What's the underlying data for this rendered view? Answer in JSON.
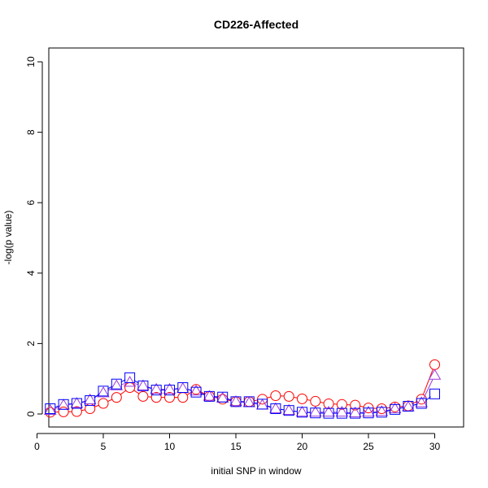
{
  "chart_data": {
    "type": "line",
    "title": "CD226-Affected",
    "xlabel": "initial SNP in window",
    "ylabel": "-log(p value)",
    "xlim": [
      0,
      31
    ],
    "ylim": [
      0,
      10
    ],
    "x_ticks": [
      0,
      5,
      10,
      15,
      20,
      25,
      30
    ],
    "y_ticks": [
      0,
      2,
      4,
      6,
      8,
      10
    ],
    "x": [
      1,
      2,
      3,
      4,
      5,
      6,
      7,
      8,
      9,
      10,
      11,
      12,
      13,
      14,
      15,
      16,
      17,
      18,
      19,
      20,
      21,
      22,
      23,
      24,
      25,
      26,
      27,
      28,
      29,
      30
    ],
    "series": [
      {
        "name": "circle",
        "marker": "circle",
        "color": "#ff0000",
        "values": [
          0.05,
          0.06,
          0.07,
          0.15,
          0.3,
          0.47,
          0.75,
          0.5,
          0.47,
          0.47,
          0.47,
          0.7,
          0.5,
          0.42,
          0.35,
          0.35,
          0.42,
          0.52,
          0.5,
          0.43,
          0.36,
          0.29,
          0.27,
          0.25,
          0.17,
          0.15,
          0.2,
          0.23,
          0.42,
          1.4
        ]
      },
      {
        "name": "triangle",
        "marker": "triangle",
        "color": "#9a3bd9",
        "values": [
          0.1,
          0.25,
          0.3,
          0.4,
          0.6,
          0.8,
          0.9,
          0.8,
          0.7,
          0.7,
          0.72,
          0.65,
          0.5,
          0.45,
          0.35,
          0.32,
          0.25,
          0.15,
          0.1,
          0.05,
          0.05,
          0.05,
          0.05,
          0.03,
          0.05,
          0.07,
          0.15,
          0.2,
          0.32,
          1.1
        ]
      },
      {
        "name": "square",
        "marker": "square",
        "color": "#0000ff",
        "values": [
          0.15,
          0.27,
          0.3,
          0.38,
          0.65,
          0.85,
          1.03,
          0.8,
          0.68,
          0.68,
          0.75,
          0.62,
          0.5,
          0.48,
          0.35,
          0.35,
          0.28,
          0.15,
          0.1,
          0.05,
          0.03,
          0.02,
          0.02,
          0.02,
          0.03,
          0.05,
          0.13,
          0.22,
          0.3,
          0.57
        ]
      }
    ]
  }
}
